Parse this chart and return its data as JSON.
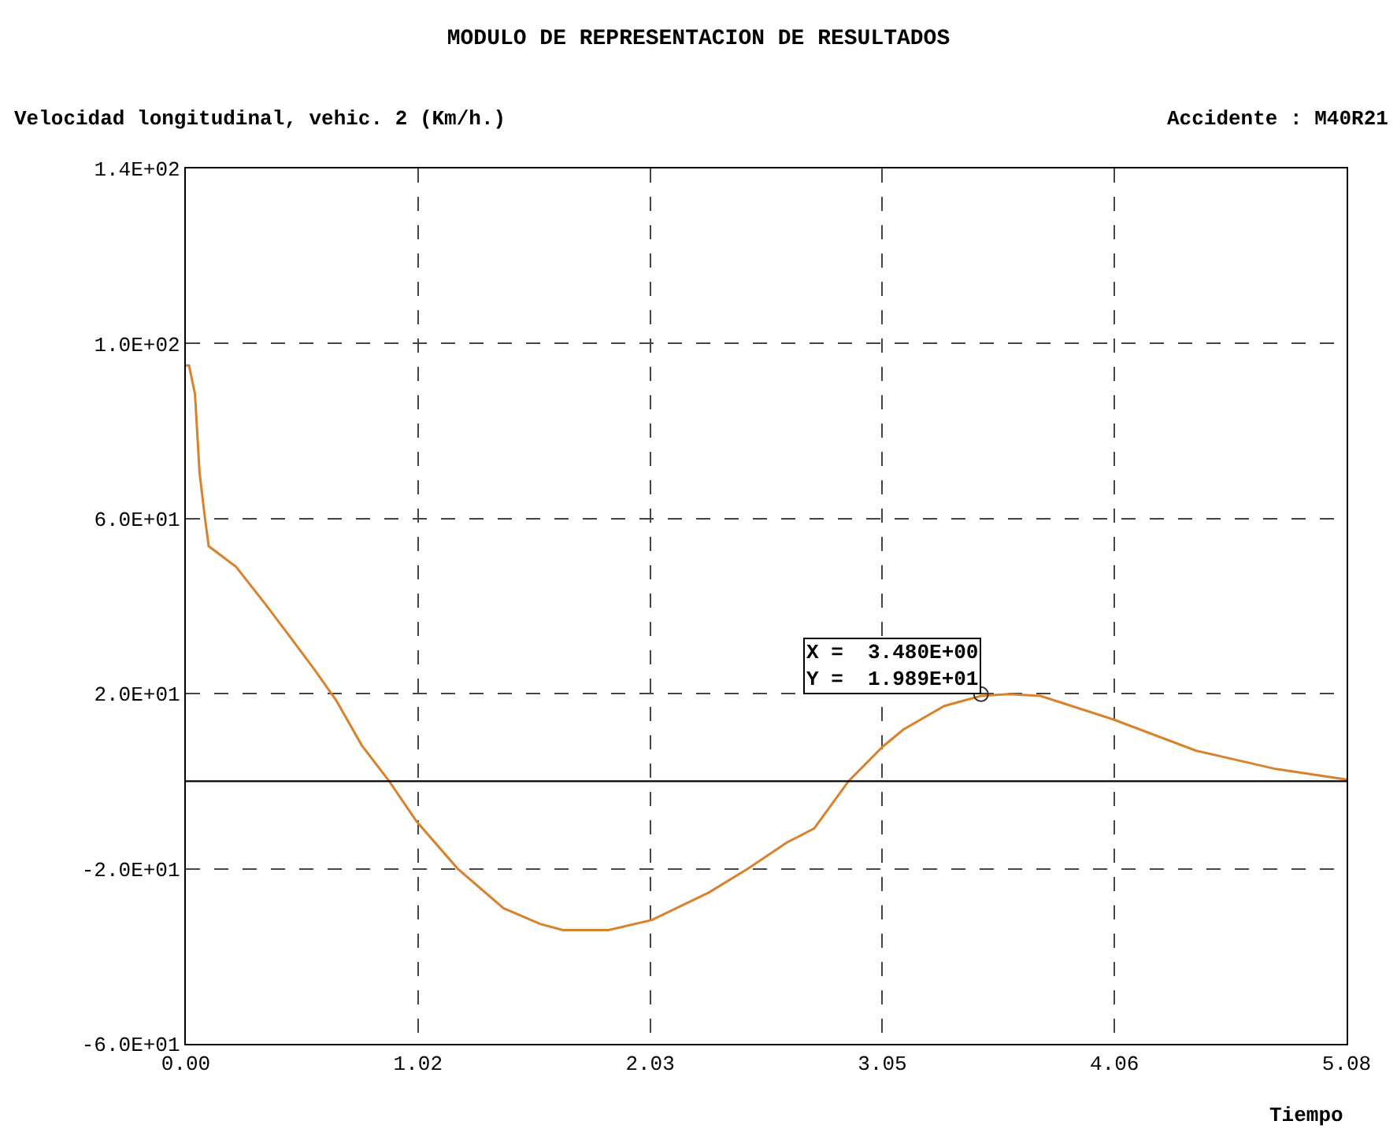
{
  "chart_data": {
    "type": "line",
    "title": "MODULO DE REPRESENTACION DE RESULTADOS",
    "subtitle": "Velocidad longitudinal, vehic. 2 (Km/h.)",
    "xlabel": "Tiempo",
    "annotations": [
      "Accidente : M40R21",
      {
        "text": "X =  3.480E+00\nY =  1.989E+01",
        "x": 3.48,
        "y": 19.89
      }
    ],
    "series": [
      {
        "color": "#d9822b",
        "x": [
          0,
          0.014,
          0.04,
          0.06,
          0.083,
          0.1,
          0.22,
          0.34,
          0.45,
          0.57,
          0.66,
          0.77,
          0.89,
          1.01,
          1.19,
          1.39,
          1.55,
          1.65,
          1.85,
          2.04,
          2.29,
          2.46,
          2.63,
          2.75,
          2.9,
          3.05,
          3.14,
          3.32,
          3.48,
          3.6,
          3.74,
          4.06,
          4.42,
          4.77,
          5.08
        ],
        "values": [
          95,
          95,
          88.5,
          70.5,
          60.4,
          53.7,
          49,
          41,
          33.4,
          25,
          18.3,
          8.2,
          0,
          -9.2,
          -20,
          -29,
          -32.6,
          -34,
          -34,
          -31.7,
          -25.4,
          -20,
          -14,
          -10.8,
          0,
          7.9,
          11.8,
          17.2,
          19.5,
          19.9,
          19.5,
          14.1,
          7,
          2.8,
          0.4
        ]
      }
    ],
    "xlim": [
      0,
      5.08
    ],
    "ylim": [
      -60,
      140
    ],
    "xticks": [
      {
        "value": 0,
        "label": "0.00"
      },
      {
        "value": 1.016,
        "label": "1.02"
      },
      {
        "value": 2.032,
        "label": "2.03"
      },
      {
        "value": 3.048,
        "label": "3.05"
      },
      {
        "value": 4.064,
        "label": "4.06"
      },
      {
        "value": 5.08,
        "label": "5.08"
      }
    ],
    "yticks": [
      {
        "value": -60,
        "label": "-6.0E+01"
      },
      {
        "value": -20,
        "label": "-2.0E+01"
      },
      {
        "value": 20,
        "label": "2.0E+01"
      },
      {
        "value": 60,
        "label": "6.0E+01"
      },
      {
        "value": 100,
        "label": "1.0E+02"
      },
      {
        "value": 140,
        "label": "1.4E+02"
      }
    ],
    "ref_lines": [
      {
        "axis": "y",
        "value": 0,
        "color": "#000000",
        "line_style": "solid"
      }
    ],
    "grid": true,
    "marker": "none",
    "line_style": "solid"
  }
}
